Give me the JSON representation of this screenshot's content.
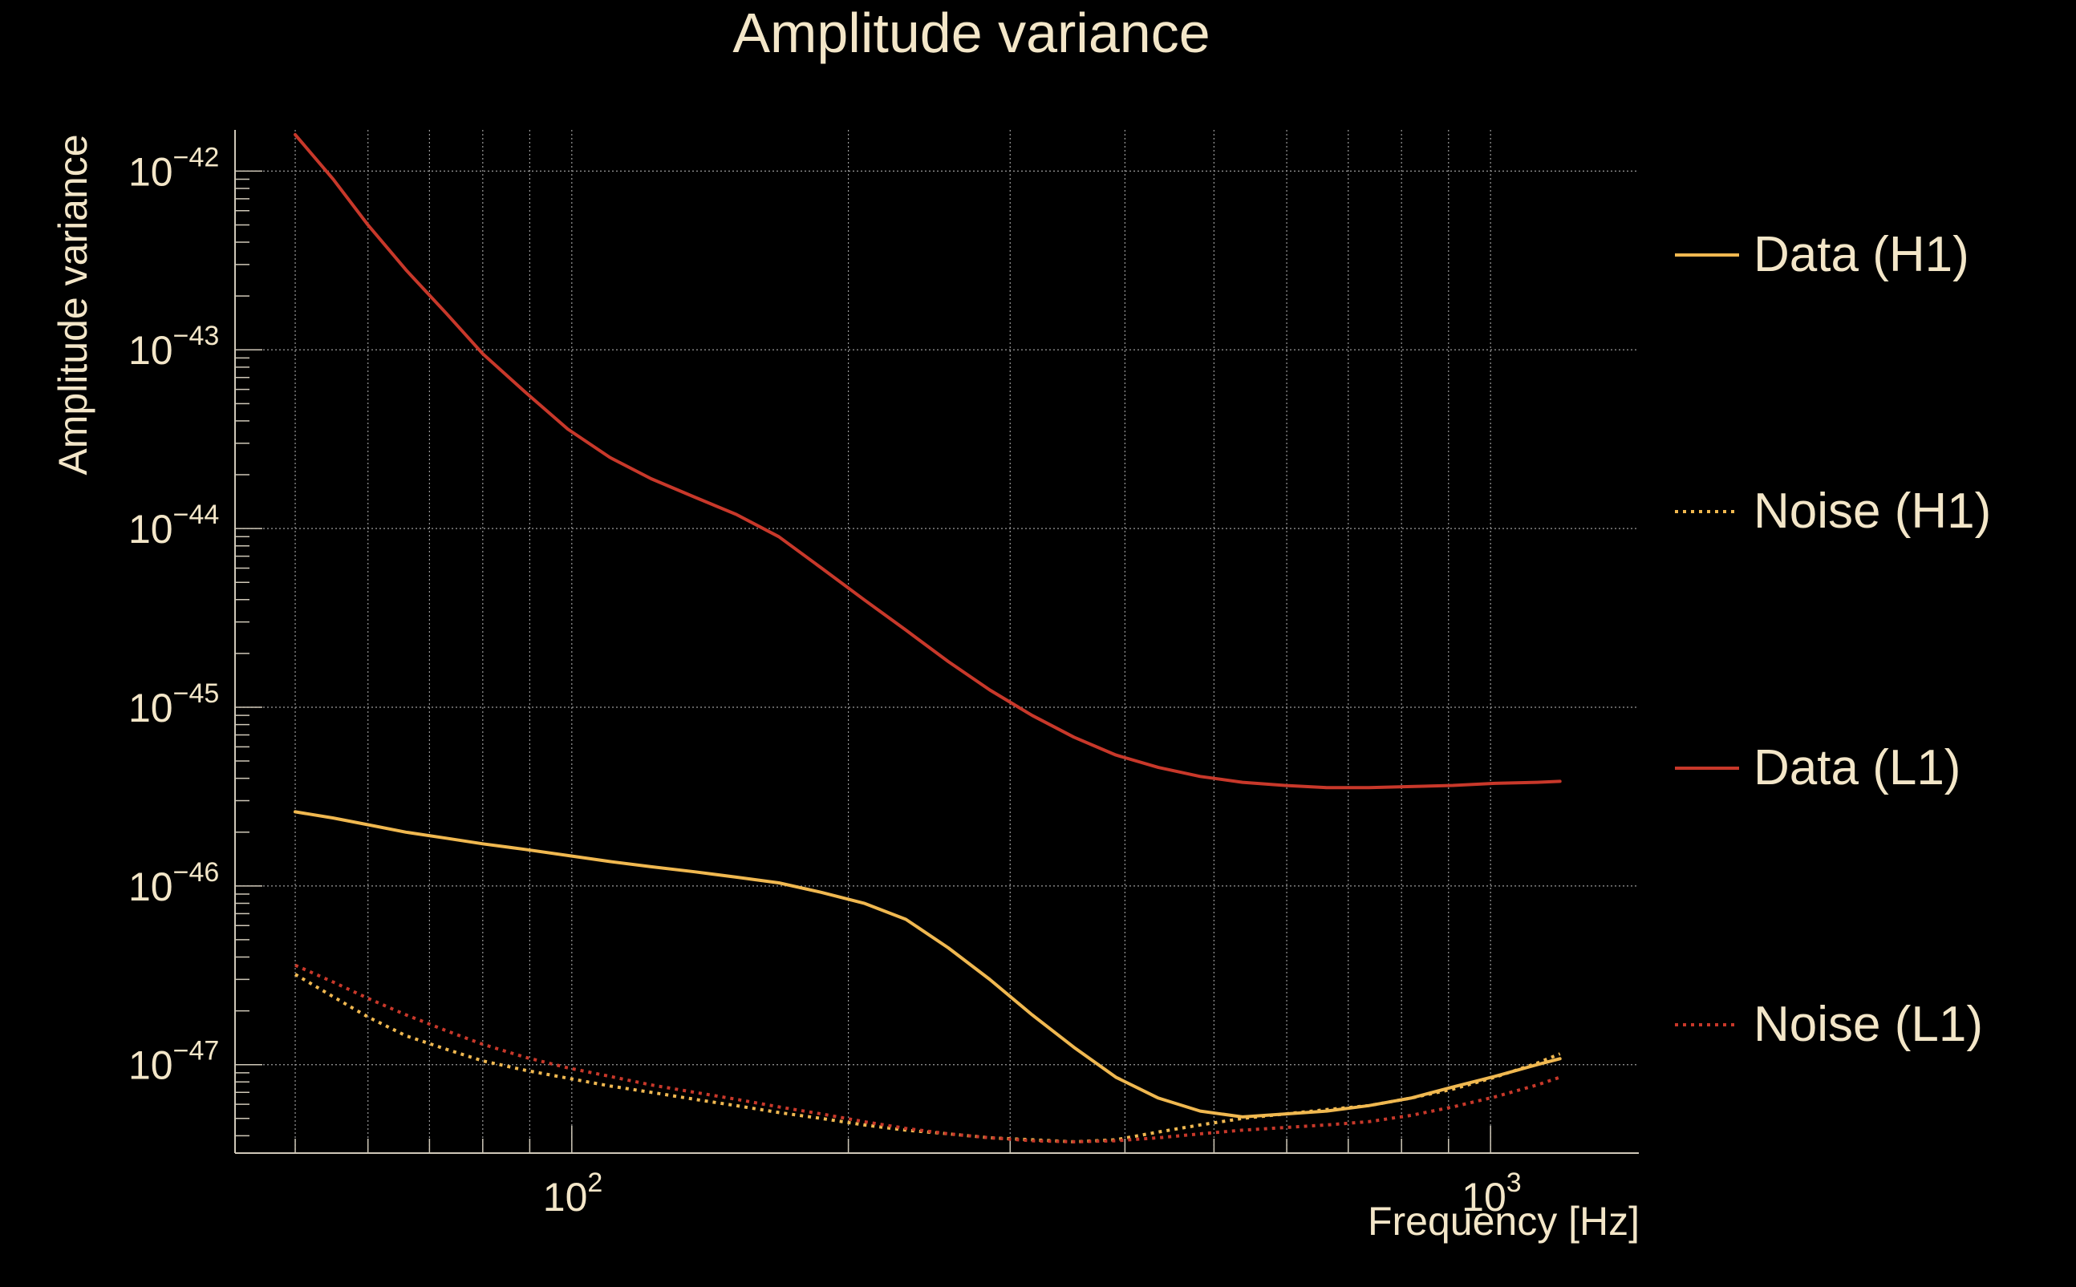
{
  "chart_data": {
    "type": "line",
    "title": "Amplitude variance",
    "xlabel": "Frequency [Hz]",
    "ylabel": "Amplitude variance",
    "x_scale": "log",
    "y_scale": "log",
    "xlim": [
      43,
      1450
    ],
    "ylim": [
      3.2e-48,
      1.7e-42
    ],
    "x_ticks": [
      {
        "value": 100,
        "base": "10",
        "exp": "2"
      },
      {
        "value": 1000,
        "base": "10",
        "exp": "3"
      }
    ],
    "y_ticks": [
      {
        "value": 1e-42,
        "base": "10",
        "exp": "−42"
      },
      {
        "value": 1e-43,
        "base": "10",
        "exp": "−43"
      },
      {
        "value": 1e-44,
        "base": "10",
        "exp": "−44"
      },
      {
        "value": 1e-45,
        "base": "10",
        "exp": "−45"
      },
      {
        "value": 1e-46,
        "base": "10",
        "exp": "−46"
      },
      {
        "value": 1e-47,
        "base": "10",
        "exp": "−47"
      }
    ],
    "grid": true,
    "legend_position": "right",
    "colors": {
      "background": "#000000",
      "text": "#f3e6c8",
      "axis": "#cfc8b8",
      "grid": "#9a9a9a",
      "h1": "#f0b850",
      "l1": "#c8382a"
    },
    "series": [
      {
        "name": "Data (H1)",
        "color": "#f0b850",
        "dash": "solid",
        "x": [
          50,
          55,
          60,
          66,
          73,
          80,
          89,
          99,
          110,
          122,
          136,
          151,
          168,
          187,
          208,
          231,
          257,
          285,
          317,
          352,
          391,
          435,
          483,
          537,
          597,
          663,
          737,
          819,
          910,
          1011,
          1124,
          1190
        ],
        "y": [
          2.6e-46,
          2.4e-46,
          2.2e-46,
          2e-46,
          1.85e-46,
          1.72e-46,
          1.6e-46,
          1.48e-46,
          1.37e-46,
          1.28e-46,
          1.2e-46,
          1.12e-46,
          1.04e-46,
          9.2e-47,
          8e-47,
          6.5e-47,
          4.5e-47,
          3e-47,
          1.9e-47,
          1.25e-47,
          8.5e-48,
          6.5e-48,
          5.5e-48,
          5.1e-48,
          5.3e-48,
          5.5e-48,
          5.9e-48,
          6.5e-48,
          7.5e-48,
          8.6e-48,
          1e-47,
          1.08e-47
        ]
      },
      {
        "name": "Noise (H1)",
        "color": "#f0b850",
        "dash": "dotted",
        "x": [
          50,
          55,
          60,
          66,
          73,
          80,
          89,
          99,
          110,
          122,
          136,
          151,
          168,
          187,
          208,
          231,
          257,
          285,
          317,
          352,
          391,
          435,
          483,
          537,
          597,
          663,
          737,
          819,
          910,
          1011,
          1124,
          1190
        ],
        "y": [
          3.2e-47,
          2.4e-47,
          1.85e-47,
          1.45e-47,
          1.22e-47,
          1.05e-47,
          9.3e-48,
          8.4e-48,
          7.6e-48,
          7e-48,
          6.4e-48,
          5.9e-48,
          5.4e-48,
          5e-48,
          4.6e-48,
          4.3e-48,
          4.1e-48,
          3.9e-48,
          3.8e-48,
          3.7e-48,
          3.8e-48,
          4.2e-48,
          4.6e-48,
          5e-48,
          5.3e-48,
          5.6e-48,
          5.9e-48,
          6.5e-48,
          7.3e-48,
          8.5e-48,
          1.02e-47,
          1.15e-47
        ]
      },
      {
        "name": "Data (L1)",
        "color": "#c8382a",
        "dash": "solid",
        "x": [
          50,
          55,
          60,
          66,
          73,
          80,
          89,
          99,
          110,
          122,
          136,
          151,
          168,
          187,
          208,
          231,
          257,
          285,
          317,
          352,
          391,
          435,
          483,
          537,
          597,
          663,
          737,
          819,
          910,
          1011,
          1124,
          1190
        ],
        "y": [
          1.6e-42,
          9e-43,
          5e-43,
          2.8e-43,
          1.6e-43,
          9.5e-44,
          5.8e-44,
          3.6e-44,
          2.5e-44,
          1.9e-44,
          1.5e-44,
          1.2e-44,
          9e-45,
          6e-45,
          4e-45,
          2.7e-45,
          1.8e-45,
          1.25e-45,
          9e-46,
          6.8e-46,
          5.4e-46,
          4.6e-46,
          4.1e-46,
          3.8e-46,
          3.65e-46,
          3.55e-46,
          3.55e-46,
          3.6e-46,
          3.65e-46,
          3.75e-46,
          3.8e-46,
          3.85e-46
        ]
      },
      {
        "name": "Noise (L1)",
        "color": "#c8382a",
        "dash": "dotted",
        "x": [
          50,
          55,
          60,
          66,
          73,
          80,
          89,
          99,
          110,
          122,
          136,
          151,
          168,
          187,
          208,
          231,
          257,
          285,
          317,
          352,
          391,
          435,
          483,
          537,
          597,
          663,
          737,
          819,
          910,
          1011,
          1124,
          1190
        ],
        "y": [
          3.6e-47,
          2.9e-47,
          2.35e-47,
          1.9e-47,
          1.55e-47,
          1.3e-47,
          1.1e-47,
          9.6e-48,
          8.6e-48,
          7.7e-48,
          7e-48,
          6.4e-48,
          5.8e-48,
          5.3e-48,
          4.8e-48,
          4.4e-48,
          4.1e-48,
          3.9e-48,
          3.75e-48,
          3.7e-48,
          3.75e-48,
          3.9e-48,
          4.1e-48,
          4.3e-48,
          4.45e-48,
          4.6e-48,
          4.8e-48,
          5.2e-48,
          5.8e-48,
          6.6e-48,
          7.7e-48,
          8.5e-48
        ]
      }
    ]
  }
}
